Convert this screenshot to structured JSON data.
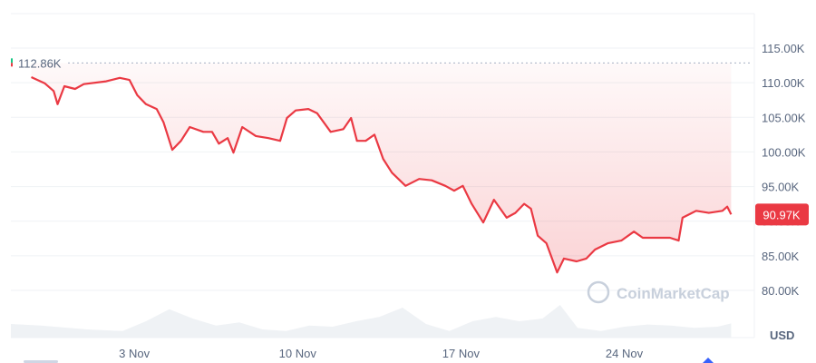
{
  "chart_data": {
    "type": "line",
    "currency_label": "USD",
    "watermark": "CoinMarketCap",
    "colors": {
      "line": "#ea3943",
      "fill": "#ea3943",
      "grid": "#eff2f5",
      "volume": "#eff2f5",
      "open_marker": "#16c784",
      "badge": "#ea3943"
    },
    "ylim": [
      76000,
      120000
    ],
    "yticks": [
      80000,
      85000,
      90000,
      95000,
      100000,
      105000,
      110000,
      115000
    ],
    "ytick_labels": [
      "80.00K",
      "85.00K",
      "90.00K",
      "95.00K",
      "100.00K",
      "105.00K",
      "110.00K",
      "115.00K"
    ],
    "xlim": [
      "10-28 17:00",
      "11-29 12:00"
    ],
    "xticks": [
      "11-03 00:00",
      "11-10 00:00",
      "11-17 00:00",
      "11-24 00:00"
    ],
    "xtick_labels": [
      "3 Nov",
      "10 Nov",
      "17 Nov",
      "24 Nov"
    ],
    "grid": true,
    "reference_value": 112860,
    "reference_label": "112.86K",
    "current_value": 90970,
    "current_label": "90.97K",
    "series": [
      {
        "points": [
          [
            "10-29 14:00",
            110800
          ],
          [
            "10-30 04:00",
            109900
          ],
          [
            "10-30 13:00",
            108800
          ],
          [
            "10-30 17:00",
            106900
          ],
          [
            "10-31 00:00",
            109500
          ],
          [
            "10-31 11:00",
            109100
          ],
          [
            "10-31 20:00",
            109800
          ],
          [
            "11-01 19:00",
            110200
          ],
          [
            "11-02 09:00",
            110700
          ],
          [
            "11-02 19:00",
            110400
          ],
          [
            "11-03 03:00",
            108200
          ],
          [
            "11-03 12:00",
            106900
          ],
          [
            "11-03 23:00",
            106200
          ],
          [
            "11-04 06:00",
            104300
          ],
          [
            "11-04 15:00",
            100300
          ],
          [
            "11-05 00:00",
            101600
          ],
          [
            "11-05 09:00",
            103600
          ],
          [
            "11-05 23:00",
            102900
          ],
          [
            "11-06 08:00",
            102900
          ],
          [
            "11-06 15:00",
            101200
          ],
          [
            "11-07 00:00",
            102000
          ],
          [
            "11-07 06:00",
            99900
          ],
          [
            "11-07 15:00",
            103600
          ],
          [
            "11-08 05:00",
            102300
          ],
          [
            "11-08 18:00",
            102000
          ],
          [
            "11-09 06:00",
            101600
          ],
          [
            "11-09 13:00",
            104900
          ],
          [
            "11-09 22:00",
            106000
          ],
          [
            "11-10 11:00",
            106200
          ],
          [
            "11-10 20:00",
            105600
          ],
          [
            "11-11 10:00",
            102900
          ],
          [
            "11-11 23:00",
            103300
          ],
          [
            "11-12 07:00",
            104900
          ],
          [
            "11-12 13:00",
            101600
          ],
          [
            "11-12 22:00",
            101600
          ],
          [
            "11-13 07:00",
            102500
          ],
          [
            "11-13 16:00",
            99000
          ],
          [
            "11-14 01:00",
            97000
          ],
          [
            "11-14 15:00",
            95100
          ],
          [
            "11-15 05:00",
            96100
          ],
          [
            "11-15 18:00",
            95900
          ],
          [
            "11-16 08:00",
            95100
          ],
          [
            "11-16 17:00",
            94400
          ],
          [
            "11-17 02:00",
            95100
          ],
          [
            "11-17 11:00",
            92500
          ],
          [
            "11-17 23:00",
            89800
          ],
          [
            "11-18 10:00",
            93100
          ],
          [
            "11-18 23:00",
            90500
          ],
          [
            "11-19 08:00",
            91200
          ],
          [
            "11-19 17:00",
            92500
          ],
          [
            "11-20 00:00",
            91800
          ],
          [
            "11-20 07:00",
            87900
          ],
          [
            "11-20 16:00",
            86800
          ],
          [
            "11-21 03:00",
            82600
          ],
          [
            "11-21 10:00",
            84600
          ],
          [
            "11-21 23:00",
            84200
          ],
          [
            "11-22 09:00",
            84600
          ],
          [
            "11-22 18:00",
            85900
          ],
          [
            "11-23 07:00",
            86800
          ],
          [
            "11-23 21:00",
            87200
          ],
          [
            "11-24 10:00",
            88500
          ],
          [
            "11-24 19:00",
            87600
          ],
          [
            "11-25 09:00",
            87600
          ],
          [
            "11-25 23:00",
            87600
          ],
          [
            "11-26 08:00",
            87200
          ],
          [
            "11-26 12:00",
            90500
          ],
          [
            "11-27 02:00",
            91500
          ],
          [
            "11-27 15:00",
            91200
          ],
          [
            "11-28 05:00",
            91500
          ],
          [
            "11-28 10:00",
            92100
          ],
          [
            "11-28 14:00",
            90970
          ]
        ]
      }
    ],
    "volume": [
      [
        "10-28 17:00",
        25
      ],
      [
        "10-30 00:00",
        22
      ],
      [
        "11-01 00:00",
        15
      ],
      [
        "11-02 12:00",
        12
      ],
      [
        "11-03 12:00",
        30
      ],
      [
        "11-04 12:00",
        52
      ],
      [
        "11-05 12:00",
        35
      ],
      [
        "11-06 12:00",
        22
      ],
      [
        "11-07 12:00",
        28
      ],
      [
        "11-08 12:00",
        15
      ],
      [
        "11-09 12:00",
        12
      ],
      [
        "11-10 12:00",
        22
      ],
      [
        "11-11 12:00",
        20
      ],
      [
        "11-12 12:00",
        30
      ],
      [
        "11-13 12:00",
        38
      ],
      [
        "11-14 12:00",
        55
      ],
      [
        "11-15 12:00",
        25
      ],
      [
        "11-16 12:00",
        12
      ],
      [
        "11-17 12:00",
        30
      ],
      [
        "11-18 12:00",
        38
      ],
      [
        "11-19 12:00",
        30
      ],
      [
        "11-20 12:00",
        35
      ],
      [
        "11-21 06:00",
        60
      ],
      [
        "11-22 00:00",
        18
      ],
      [
        "11-23 00:00",
        12
      ],
      [
        "11-24 00:00",
        20
      ],
      [
        "11-25 00:00",
        24
      ],
      [
        "11-26 00:00",
        22
      ],
      [
        "11-27 00:00",
        18
      ],
      [
        "11-28 00:00",
        20
      ],
      [
        "11-28 14:00",
        26
      ]
    ]
  }
}
